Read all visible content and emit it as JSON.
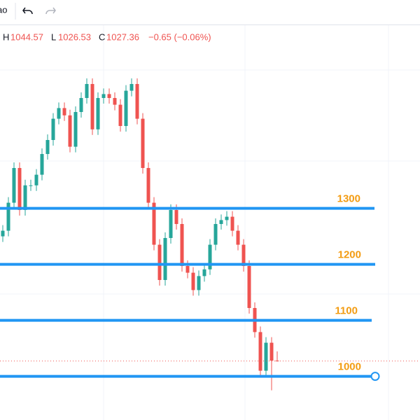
{
  "header": {
    "symbol_fragment": "ao",
    "ohlc": {
      "h_label": "H",
      "h": "1044.57",
      "l_label": "L",
      "l": "1026.53",
      "c_label": "C",
      "c": "1027.36",
      "change": "−0.65 (−0.06%)"
    }
  },
  "chart_data": {
    "type": "candlestick",
    "ylim": [
      922,
      1672
    ],
    "up_color": "#26a69a",
    "down_color": "#ef5350",
    "level_color": "#2196f3",
    "label_color": "#f39c12",
    "open": [
      1250,
      1260,
      1310,
      1372,
      1297,
      1341,
      1341,
      1360,
      1397,
      1422,
      1460,
      1479,
      1466,
      1410,
      1472,
      1497,
      1522,
      1441,
      1497,
      1504,
      1497,
      1485,
      1447,
      1510,
      1522,
      1460,
      1372,
      1310,
      1235,
      1172,
      1247,
      1297,
      1272,
      1197,
      1185,
      1154,
      1179,
      1191,
      1235,
      1272,
      1279,
      1285,
      1260,
      1235,
      1197,
      1122,
      1079,
      1010,
      1060,
      1028.01
    ],
    "high": [
      1270,
      1320,
      1382,
      1382,
      1351,
      1351,
      1370,
      1407,
      1432,
      1470,
      1489,
      1489,
      1476,
      1482,
      1507,
      1532,
      1532,
      1507,
      1514,
      1514,
      1507,
      1495,
      1520,
      1532,
      1532,
      1470,
      1382,
      1320,
      1245,
      1257,
      1307,
      1307,
      1282,
      1207,
      1195,
      1189,
      1201,
      1245,
      1282,
      1289,
      1295,
      1295,
      1270,
      1245,
      1207,
      1132,
      1089,
      1070,
      1070,
      1044.57
    ],
    "low": [
      1240,
      1250,
      1300,
      1287,
      1287,
      1331,
      1331,
      1350,
      1387,
      1412,
      1450,
      1456,
      1400,
      1400,
      1462,
      1487,
      1431,
      1431,
      1487,
      1487,
      1475,
      1437,
      1437,
      1500,
      1450,
      1362,
      1300,
      1225,
      1162,
      1162,
      1237,
      1262,
      1187,
      1175,
      1144,
      1144,
      1169,
      1181,
      1225,
      1262,
      1269,
      1250,
      1225,
      1187,
      1112,
      1069,
      1000,
      1000,
      975,
      1026.53
    ],
    "close": [
      1260,
      1310,
      1372,
      1297,
      1341,
      1341,
      1360,
      1397,
      1422,
      1460,
      1479,
      1466,
      1410,
      1472,
      1497,
      1522,
      1441,
      1497,
      1504,
      1497,
      1485,
      1447,
      1510,
      1522,
      1460,
      1372,
      1310,
      1235,
      1172,
      1247,
      1297,
      1272,
      1197,
      1185,
      1154,
      1179,
      1191,
      1235,
      1272,
      1279,
      1285,
      1260,
      1235,
      1197,
      1122,
      1079,
      1010,
      1060,
      1028.01,
      1027.36
    ],
    "levels": [
      1300,
      1200,
      1100,
      1000
    ]
  }
}
